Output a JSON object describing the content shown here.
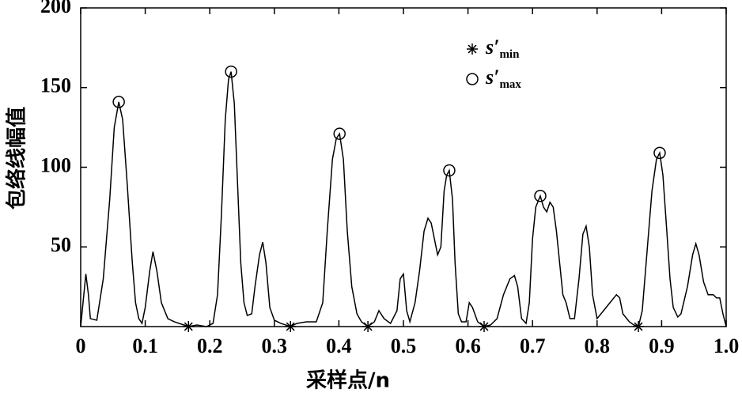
{
  "chart_data": {
    "type": "line",
    "x_label": "采样点/n",
    "y_label": "包络线幅值",
    "xlim": [
      0,
      1
    ],
    "ylim": [
      0,
      200
    ],
    "xticks": [
      0,
      0.1,
      0.2,
      0.3,
      0.4,
      0.5,
      0.6,
      0.7,
      0.8,
      0.9,
      {
        "value": 1,
        "label": "1.0"
      }
    ],
    "yticks": [
      50,
      100,
      150,
      200
    ],
    "color": "#000000",
    "x": [
      0,
      0.008,
      0.012,
      0.015,
      0.025,
      0.035,
      0.045,
      0.052,
      0.059,
      0.065,
      0.072,
      0.08,
      0.085,
      0.09,
      0.095,
      0.1,
      0.107,
      0.112,
      0.118,
      0.125,
      0.135,
      0.145,
      0.16,
      0.167,
      0.18,
      0.195,
      0.205,
      0.212,
      0.218,
      0.224,
      0.229,
      0.233,
      0.238,
      0.243,
      0.248,
      0.253,
      0.258,
      0.265,
      0.27,
      0.277,
      0.282,
      0.287,
      0.293,
      0.3,
      0.31,
      0.325,
      0.335,
      0.35,
      0.365,
      0.375,
      0.382,
      0.39,
      0.396,
      0.401,
      0.407,
      0.413,
      0.42,
      0.428,
      0.435,
      0.445,
      0.455,
      0.462,
      0.47,
      0.48,
      0.49,
      0.495,
      0.5,
      0.505,
      0.51,
      0.518,
      0.525,
      0.532,
      0.538,
      0.543,
      0.548,
      0.553,
      0.558,
      0.563,
      0.567,
      0.571,
      0.576,
      0.58,
      0.585,
      0.59,
      0.597,
      0.602,
      0.607,
      0.615,
      0.625,
      0.635,
      0.645,
      0.655,
      0.665,
      0.672,
      0.677,
      0.683,
      0.69,
      0.695,
      0.7,
      0.705,
      0.712,
      0.717,
      0.722,
      0.727,
      0.732,
      0.737,
      0.742,
      0.747,
      0.752,
      0.758,
      0.765,
      0.772,
      0.778,
      0.783,
      0.788,
      0.793,
      0.8,
      0.81,
      0.82,
      0.83,
      0.835,
      0.84,
      0.85,
      0.857,
      0.864,
      0.87,
      0.878,
      0.885,
      0.892,
      0.897,
      0.902,
      0.908,
      0.913,
      0.918,
      0.925,
      0.93,
      0.94,
      0.948,
      0.953,
      0.958,
      0.965,
      0.972,
      0.98,
      0.985,
      0.99,
      0.995,
      1
    ],
    "values": [
      0,
      33,
      20,
      5,
      4,
      30,
      80,
      125,
      141,
      130,
      90,
      40,
      15,
      5,
      2,
      12,
      35,
      47,
      35,
      15,
      5,
      3,
      1,
      0,
      1,
      0,
      2,
      20,
      70,
      130,
      155,
      160,
      140,
      90,
      40,
      15,
      7,
      8,
      25,
      45,
      53,
      40,
      12,
      4,
      2,
      0,
      2,
      3,
      3,
      15,
      60,
      105,
      118,
      121,
      105,
      60,
      25,
      8,
      3,
      0,
      3,
      10,
      5,
      2,
      10,
      30,
      33,
      10,
      3,
      15,
      35,
      60,
      68,
      65,
      55,
      45,
      50,
      85,
      95,
      98,
      80,
      40,
      8,
      3,
      3,
      15,
      12,
      3,
      0,
      1,
      5,
      20,
      30,
      32,
      25,
      5,
      2,
      15,
      55,
      75,
      82,
      75,
      72,
      78,
      75,
      60,
      40,
      20,
      15,
      5,
      5,
      30,
      58,
      63,
      50,
      20,
      5,
      10,
      15,
      20,
      18,
      8,
      3,
      1,
      0,
      10,
      50,
      85,
      105,
      109,
      95,
      60,
      30,
      12,
      6,
      8,
      25,
      45,
      52,
      45,
      28,
      20,
      20,
      18,
      18,
      8,
      0
    ],
    "markers": [
      {
        "name": "s′",
        "name_sub": "min",
        "symbol": "star",
        "x": [
          0.167,
          0.325,
          0.445,
          0.625,
          0.864
        ],
        "values": [
          0,
          0,
          0,
          0,
          0
        ]
      },
      {
        "name": "s′",
        "name_sub": "max",
        "symbol": "circle",
        "x": [
          0.059,
          0.233,
          0.401,
          0.571,
          0.712,
          0.897
        ],
        "values": [
          141,
          160,
          121,
          98,
          82,
          109
        ]
      }
    ]
  }
}
